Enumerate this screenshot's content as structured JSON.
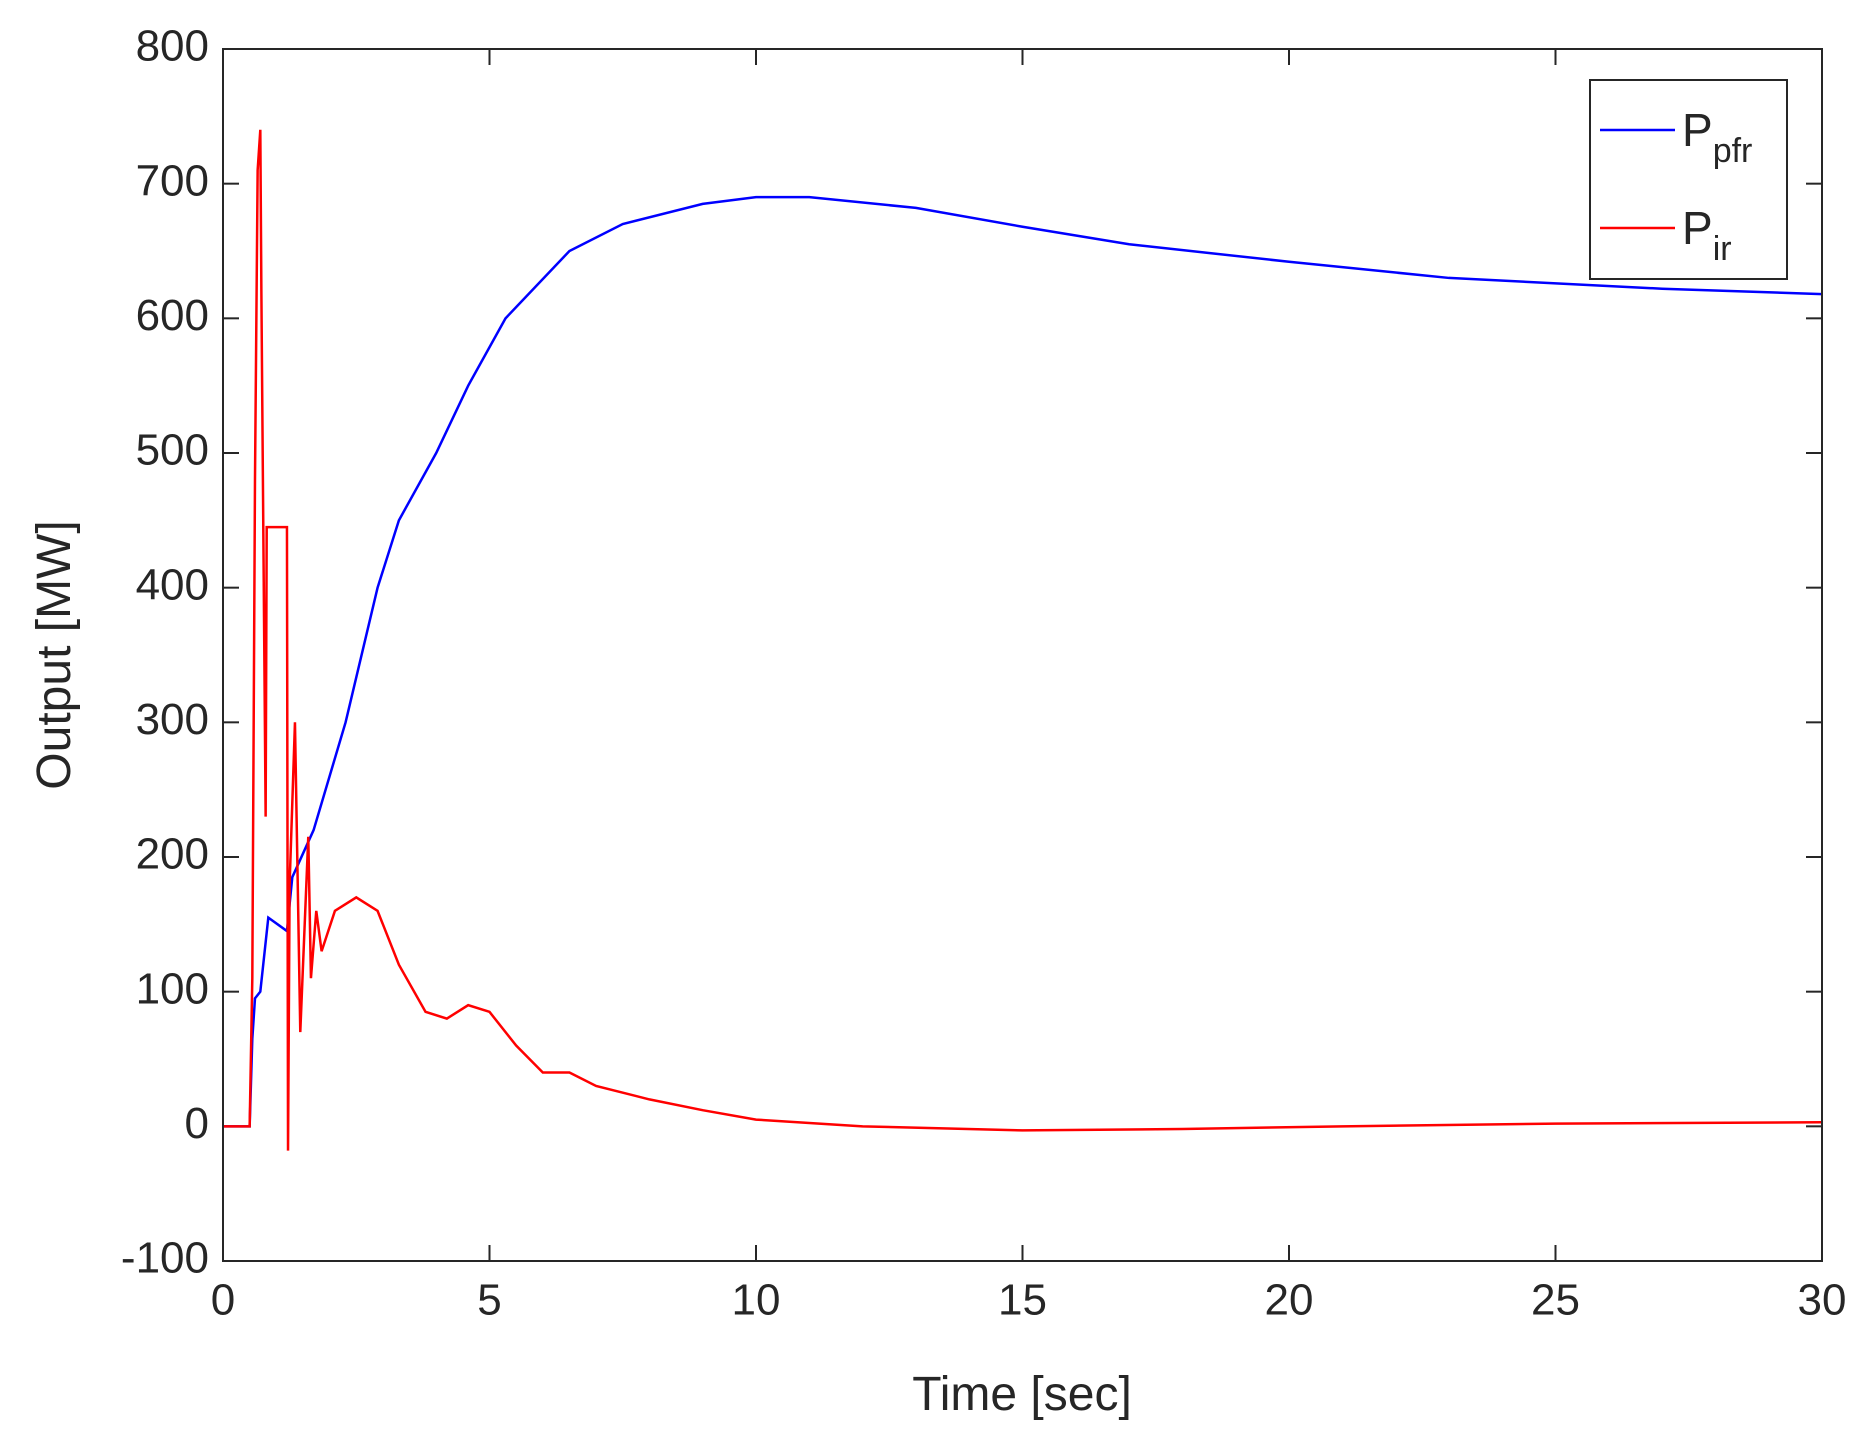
{
  "chart_data": {
    "type": "line",
    "x_label": "Time [sec]",
    "y_label": "Output [MW]",
    "xlim": [
      0,
      30
    ],
    "ylim": [
      -100,
      800
    ],
    "xticks": [
      0,
      5,
      10,
      15,
      20,
      25,
      30
    ],
    "yticks": [
      -100,
      0,
      100,
      200,
      300,
      400,
      500,
      600,
      700,
      800
    ],
    "grid": false,
    "legend": "upper right",
    "series": [
      {
        "name": "P",
        "subscript": "pfr",
        "color": "#0000ff",
        "x": [
          0,
          0.5,
          0.55,
          0.6,
          0.7,
          0.85,
          1.2,
          1.3,
          1.7,
          2.3,
          2.9,
          3.3,
          4.0,
          4.6,
          5.3,
          6.5,
          7.5,
          9,
          10,
          11,
          13,
          15,
          17,
          20,
          23,
          27,
          30
        ],
        "values": [
          0,
          0,
          65,
          95,
          100,
          155,
          145,
          185,
          220,
          300,
          400,
          450,
          500,
          550,
          600,
          650,
          670,
          685,
          690,
          690,
          682,
          668,
          655,
          642,
          630,
          622,
          618
        ]
      },
      {
        "name": "P",
        "subscript": "ir",
        "color": "#ff0000",
        "x": [
          0,
          0.5,
          0.55,
          0.6,
          0.65,
          0.7,
          0.72,
          0.8,
          0.82,
          1.2,
          1.22,
          1.25,
          1.35,
          1.45,
          1.6,
          1.65,
          1.75,
          1.85,
          2.1,
          2.5,
          2.9,
          3.3,
          3.8,
          4.2,
          4.6,
          5.0,
          5.5,
          6.0,
          6.5,
          7.0,
          8,
          9,
          10,
          12,
          15,
          18,
          21,
          25,
          30
        ],
        "values": [
          0,
          0,
          110,
          480,
          710,
          740,
          620,
          230,
          445,
          445,
          -18,
          180,
          300,
          70,
          215,
          110,
          160,
          130,
          160,
          170,
          160,
          120,
          85,
          80,
          90,
          85,
          60,
          40,
          40,
          30,
          20,
          12,
          5,
          0,
          -3,
          -2,
          0,
          2,
          3
        ]
      }
    ]
  }
}
